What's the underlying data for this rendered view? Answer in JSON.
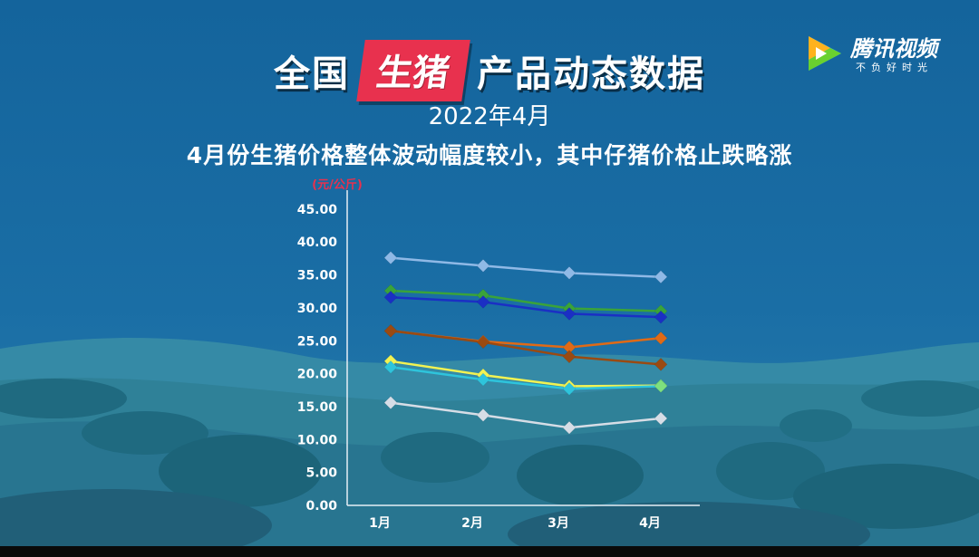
{
  "header": {
    "title_left": "全国",
    "title_highlight": "生猪",
    "title_right": "产品动态数据",
    "date": "2022年4月",
    "subtitle": "4月份生猪价格整体波动幅度较小，其中仔猪价格止跌略涨"
  },
  "logo": {
    "name": "腾讯视频",
    "slogan": "不负好时光"
  },
  "chart_data": {
    "type": "line",
    "unit_label": "(元/公斤)",
    "categories": [
      "1月",
      "2月",
      "3月",
      "4月"
    ],
    "yticks": [
      "0.00",
      "5.00",
      "10.00",
      "15.00",
      "20.00",
      "25.00",
      "30.00",
      "35.00",
      "40.00",
      "45.00"
    ],
    "ylim": [
      0,
      45
    ],
    "grid": false,
    "legend": "none",
    "series": [
      {
        "color": "#8fb9e6",
        "values": [
          37.6,
          36.4,
          35.3,
          34.7
        ]
      },
      {
        "color": "#3aa33a",
        "values": [
          32.6,
          31.9,
          29.9,
          29.5
        ]
      },
      {
        "color": "#1b2fc4",
        "values": [
          31.6,
          30.9,
          29.1,
          28.6
        ]
      },
      {
        "color": "#e06a16",
        "values": [
          26.5,
          24.9,
          24.0,
          25.4
        ]
      },
      {
        "color": "#9a4a12",
        "values": [
          26.5,
          24.8,
          22.6,
          21.4
        ]
      },
      {
        "color": "#f2f252",
        "values": [
          21.9,
          19.8,
          18.1,
          18.2
        ]
      },
      {
        "color": "#2ec4dc",
        "values": [
          21.0,
          19.1,
          17.7,
          18.1
        ]
      },
      {
        "color": "#d6dde6",
        "values": [
          15.6,
          13.7,
          11.8,
          13.2
        ]
      }
    ],
    "marker_colors_last": {
      "5": "#7ee07e",
      "6": "#7ee07e"
    }
  }
}
